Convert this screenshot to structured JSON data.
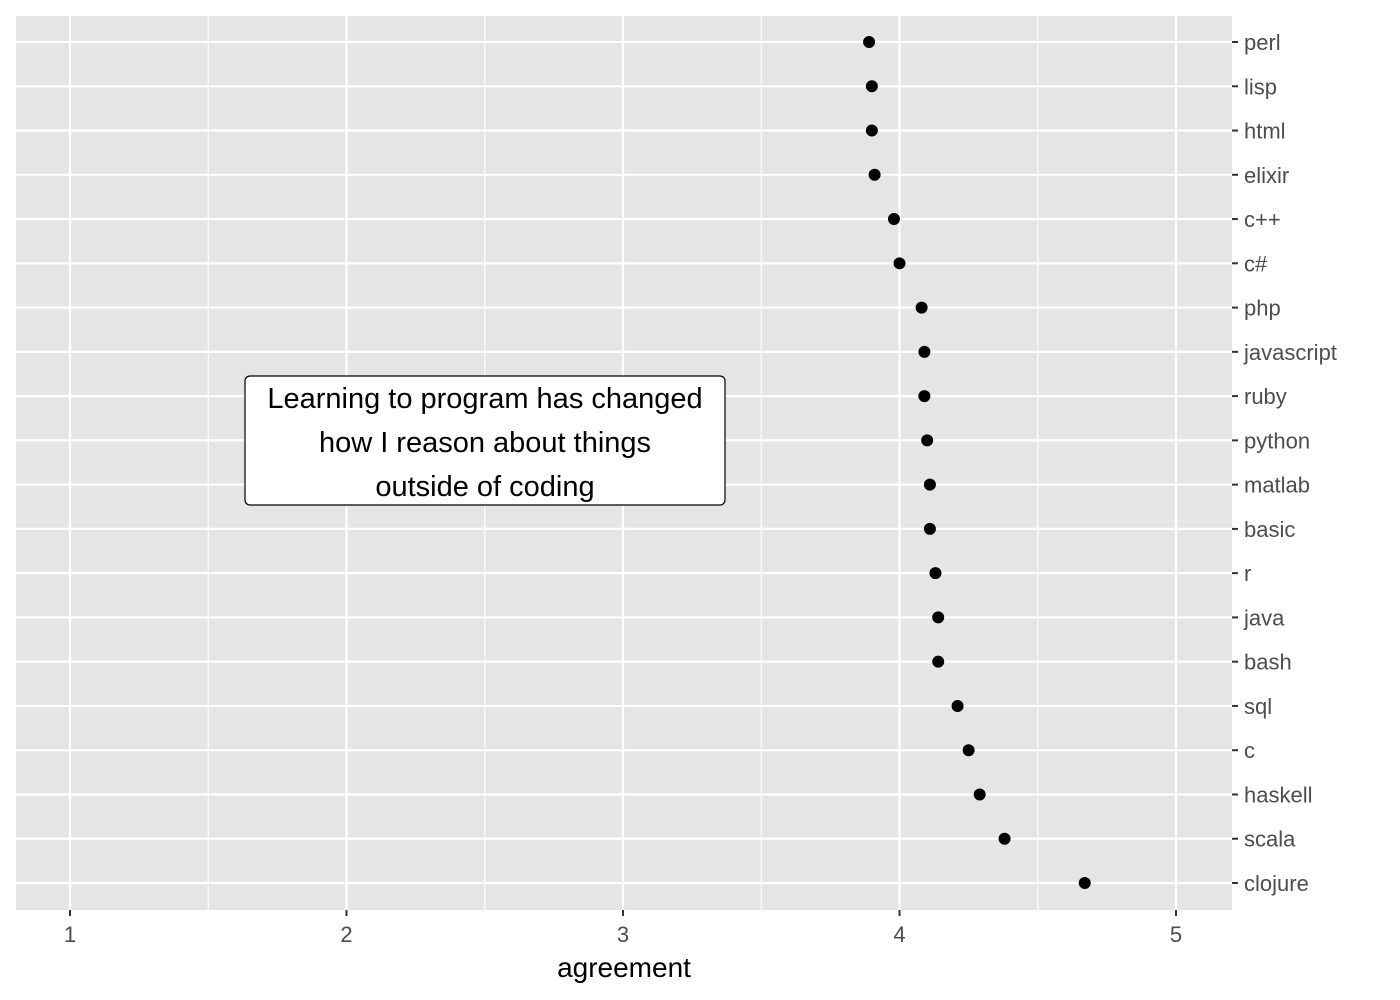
{
  "chart_data": {
    "type": "scatter",
    "title": "",
    "xlabel": "agreement",
    "ylabel": "",
    "xlim": [
      0.8,
      5.2
    ],
    "x_ticks": [
      1,
      2,
      3,
      4,
      5
    ],
    "x_tick_labels": [
      "1",
      "2",
      "3",
      "4",
      "5"
    ],
    "grid": true,
    "legend": "none",
    "categories": [
      "perl",
      "lisp",
      "html",
      "elixir",
      "c++",
      "c#",
      "php",
      "javascript",
      "ruby",
      "python",
      "matlab",
      "basic",
      "r",
      "java",
      "bash",
      "sql",
      "c",
      "haskell",
      "scala",
      "clojure"
    ],
    "values": [
      3.89,
      3.9,
      3.9,
      3.91,
      3.98,
      4.0,
      4.08,
      4.09,
      4.09,
      4.1,
      4.11,
      4.11,
      4.13,
      4.14,
      4.14,
      4.21,
      4.25,
      4.29,
      4.38,
      4.67
    ],
    "annotation": {
      "lines": [
        "Learning to program has changed",
        "how I reason about things",
        "outside of coding"
      ]
    },
    "colors": {
      "panel": "#e5e5e5",
      "grid": "#ffffff",
      "point": "#000000",
      "tick_text": "#4d4d4d"
    }
  }
}
